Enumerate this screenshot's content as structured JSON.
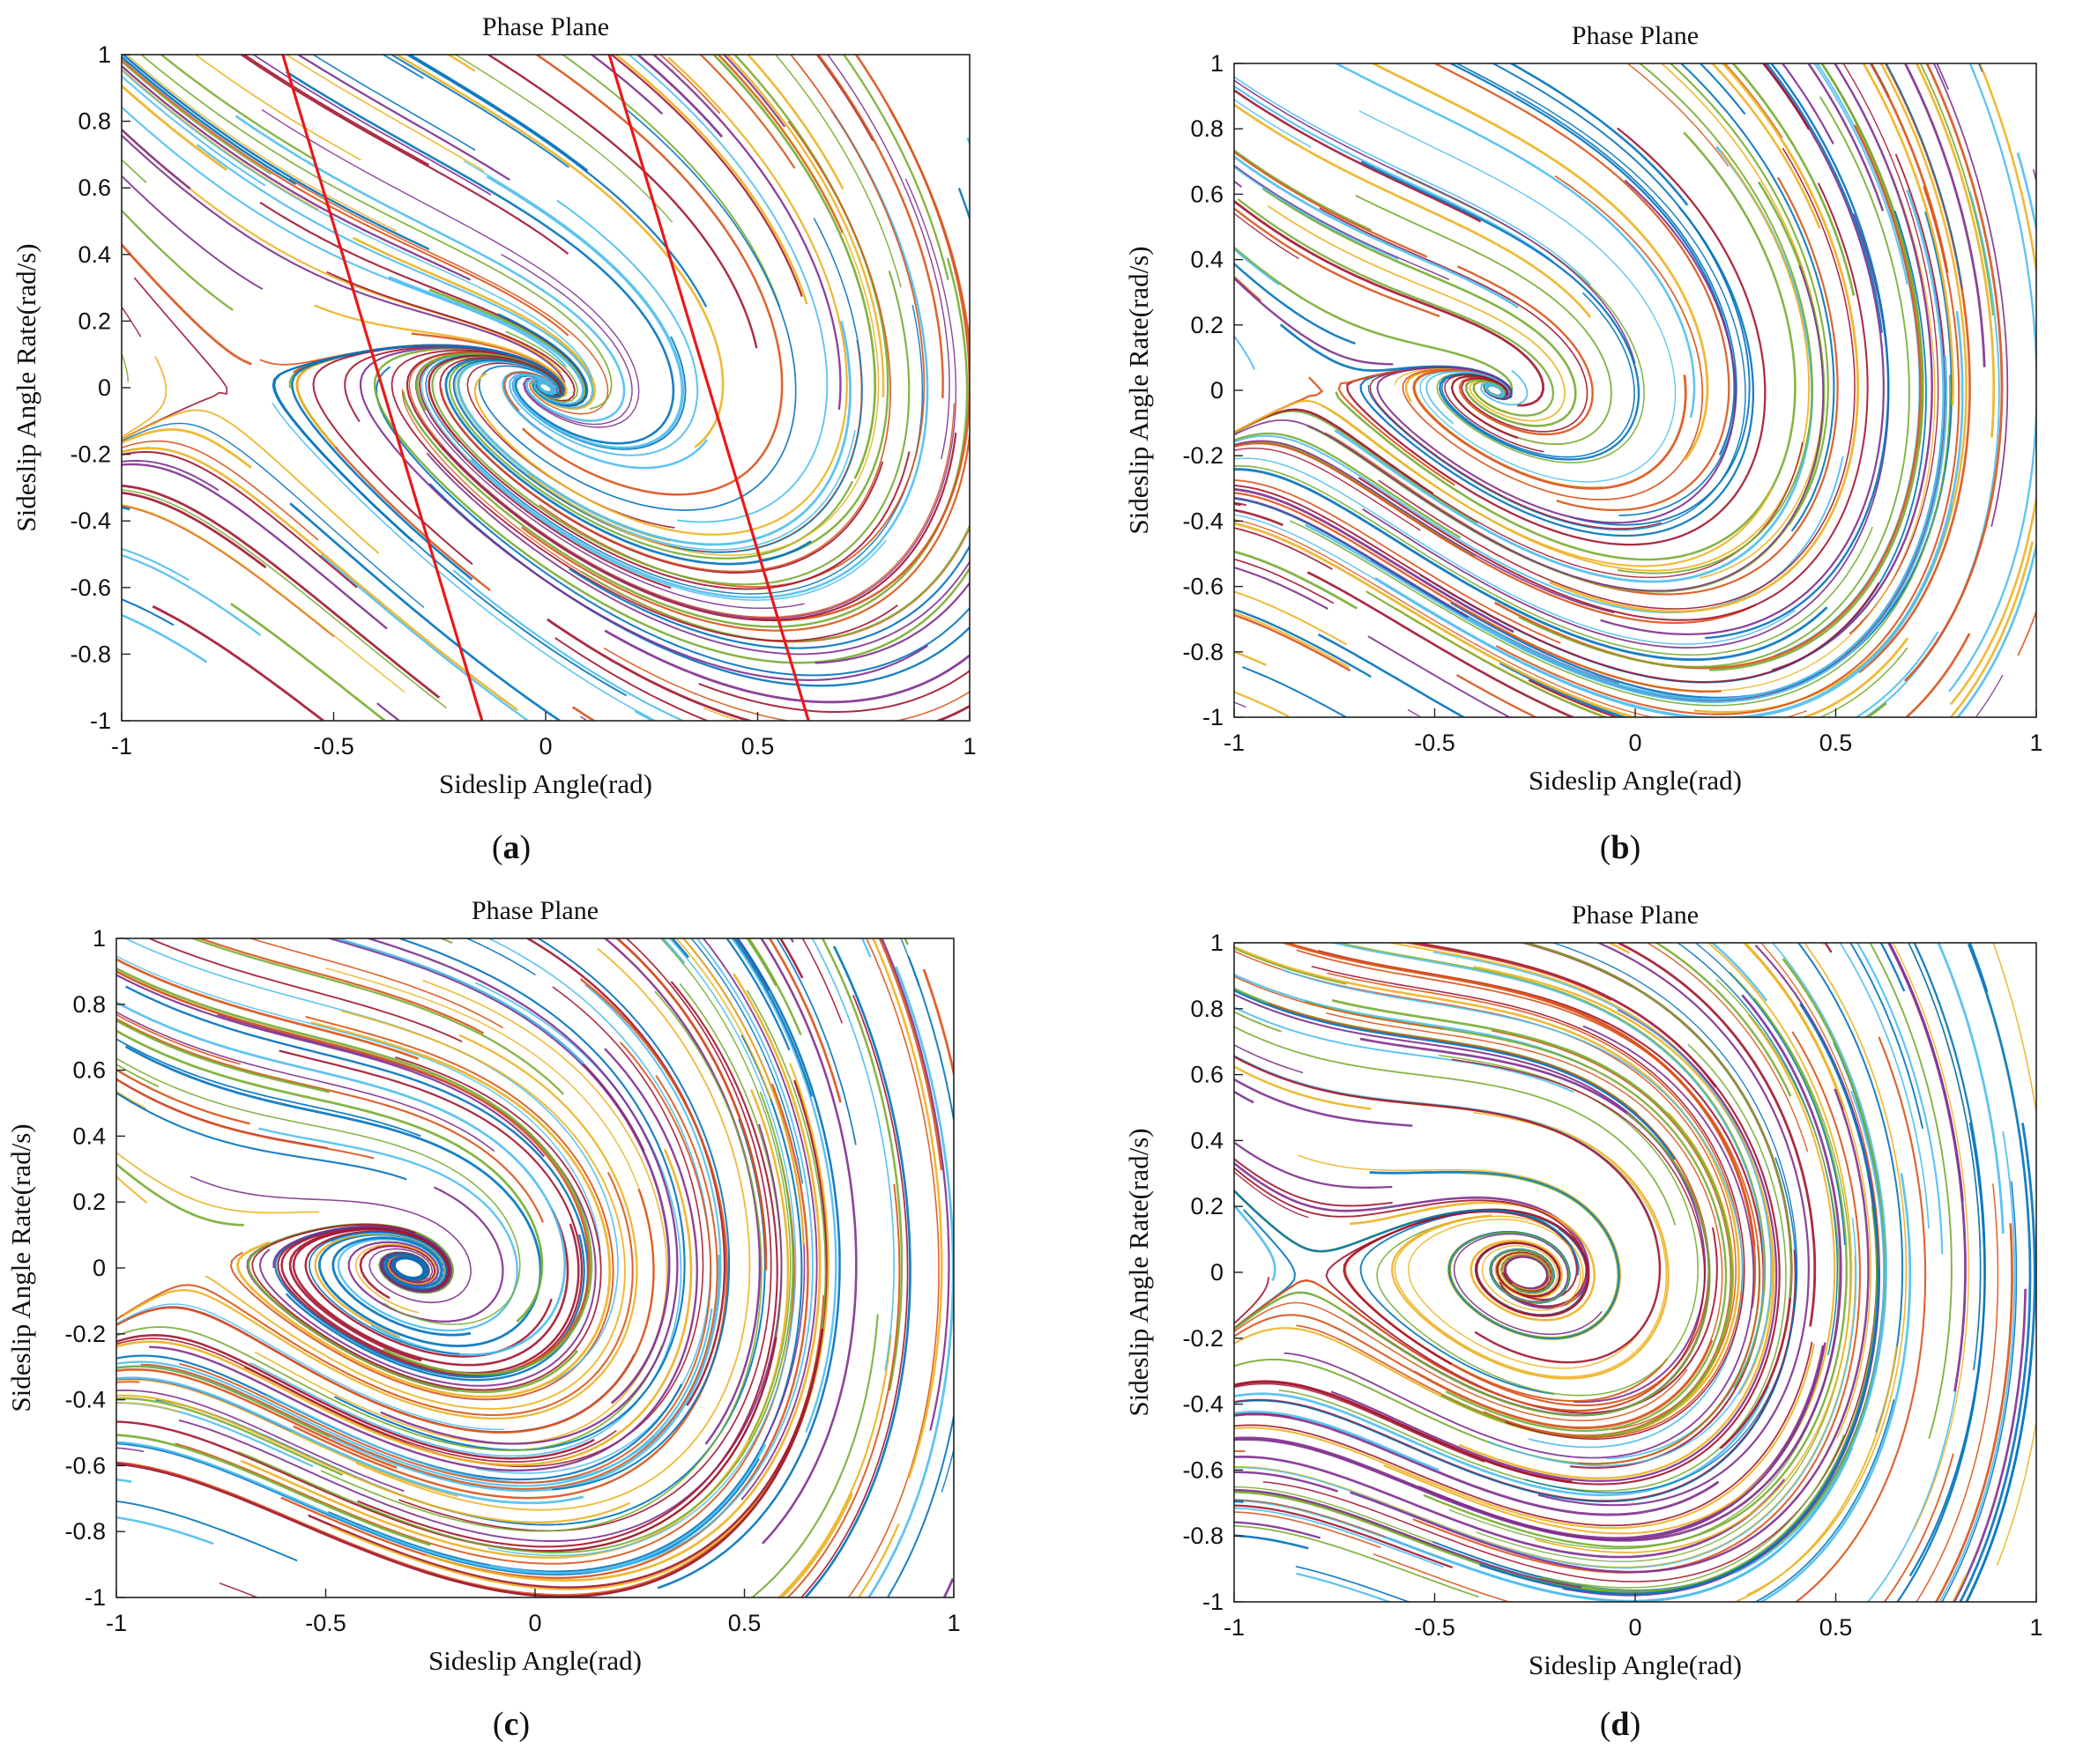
{
  "chart_data": [
    {
      "type": "line",
      "panel": "a",
      "caption_letter": "a",
      "title": "Phase Plane",
      "xlabel": "Sideslip Angle(rad)",
      "ylabel": "Sideslip Angle Rate(rad/s)",
      "xlim": [
        -1,
        1
      ],
      "ylim": [
        -1,
        1
      ],
      "xticks": [
        "-1",
        "-0.5",
        "0",
        "0.5",
        "1"
      ],
      "yticks": [
        "-1",
        "-0.8",
        "-0.6",
        "-0.4",
        "-0.2",
        "0",
        "0.2",
        "0.4",
        "0.6",
        "0.8",
        "1"
      ],
      "grid": false,
      "description_model": {
        "k": 1.0,
        "saddle": 0.0,
        "twist": 1.6
      },
      "boundaries": [
        {
          "color": "#e8191b",
          "points": [
            [
              -0.62,
              1.0
            ],
            [
              -0.15,
              -1.0
            ]
          ]
        },
        {
          "color": "#e8191b",
          "points": [
            [
              0.15,
              1.0
            ],
            [
              0.62,
              -1.0
            ]
          ]
        }
      ]
    },
    {
      "type": "line",
      "panel": "b",
      "caption_letter": "b",
      "title": "Phase Plane",
      "xlabel": "Sideslip Angle(rad)",
      "ylabel": "Sideslip Angle Rate(rad/s)",
      "xlim": [
        -1,
        1
      ],
      "ylim": [
        -1,
        1
      ],
      "xticks": [
        "-1",
        "-0.5",
        "0",
        "0.5",
        "1"
      ],
      "yticks": [
        "-1",
        "-0.8",
        "-0.6",
        "-0.4",
        "-0.2",
        "0",
        "0.2",
        "0.4",
        "0.6",
        "0.8",
        "1"
      ],
      "grid": false,
      "description_model": {
        "k": 1.3,
        "saddle": -0.35,
        "twist": 1.2
      },
      "boundaries": []
    },
    {
      "type": "line",
      "panel": "c",
      "caption_letter": "c",
      "title": "Phase Plane",
      "xlabel": "Sideslip Angle(rad)",
      "ylabel": "Sideslip Angle Rate(rad/s)",
      "xlim": [
        -1,
        1
      ],
      "ylim": [
        -1,
        1
      ],
      "xticks": [
        "-1",
        "-0.5",
        "0",
        "0.5",
        "1"
      ],
      "yticks": [
        "-1",
        "-0.8",
        "-0.6",
        "-0.4",
        "-0.2",
        "0",
        "0.2",
        "0.4",
        "0.6",
        "0.8",
        "1"
      ],
      "grid": false,
      "description_model": {
        "k": 1.5,
        "saddle": -0.3,
        "twist": 0.8
      },
      "boundaries": []
    },
    {
      "type": "line",
      "panel": "d",
      "caption_letter": "d",
      "title": "Phase Plane",
      "xlabel": "Sideslip Angle(rad)",
      "ylabel": "Sideslip Angle Rate(rad/s)",
      "xlim": [
        -1,
        1
      ],
      "ylim": [
        -1,
        1
      ],
      "xticks": [
        "-1",
        "-0.5",
        "0",
        "0.5",
        "1"
      ],
      "yticks": [
        "-1",
        "-0.8",
        "-0.6",
        "-0.4",
        "-0.2",
        "0",
        "0.2",
        "0.4",
        "0.6",
        "0.8",
        "1"
      ],
      "grid": false,
      "description_model": {
        "k": 1.7,
        "saddle": -0.27,
        "twist": 0.6
      },
      "boundaries": []
    }
  ],
  "palette": [
    "#0072bd",
    "#d95319",
    "#edb120",
    "#7e2f8e",
    "#77ac30",
    "#4dbeee",
    "#a2142f"
  ]
}
